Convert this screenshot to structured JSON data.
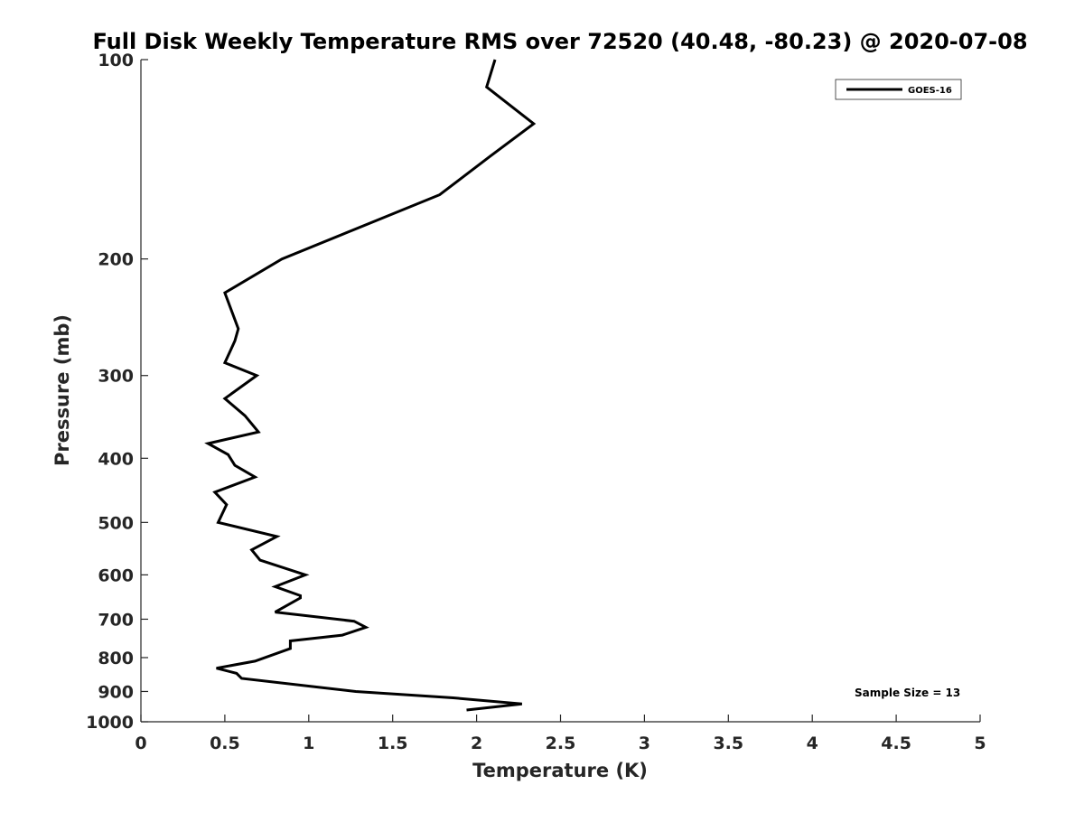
{
  "chart_data": {
    "type": "line",
    "title": "Full Disk Weekly Temperature RMS over 72520 (40.48, -80.23) @ 2020-07-08",
    "xlabel": "Temperature (K)",
    "ylabel": "Pressure (mb)",
    "xlim": [
      0,
      5
    ],
    "ylim": [
      1000,
      100
    ],
    "yscale": "log",
    "y_reversed": true,
    "xticks": [
      0,
      0.5,
      1,
      1.5,
      2,
      2.5,
      3,
      3.5,
      4,
      4.5,
      5
    ],
    "xtick_labels": [
      "0",
      "0.5",
      "1",
      "1.5",
      "2",
      "2.5",
      "3",
      "3.5",
      "4",
      "4.5",
      "5"
    ],
    "yticks": [
      100,
      200,
      300,
      400,
      500,
      600,
      700,
      800,
      900,
      1000
    ],
    "ytick_labels": [
      "100",
      "200",
      "300",
      "400",
      "500",
      "600",
      "700",
      "800",
      "900",
      "1000"
    ],
    "grid": false,
    "legend_position": "top-right",
    "series": [
      {
        "name": "GOES-16",
        "color": "#000000",
        "x": [
          2.11,
          2.06,
          2.34,
          2.08,
          1.78,
          0.84,
          0.5,
          0.58,
          0.56,
          0.5,
          0.69,
          0.5,
          0.62,
          0.7,
          0.4,
          0.52,
          0.56,
          0.68,
          0.44,
          0.51,
          0.46,
          0.81,
          0.66,
          0.71,
          0.98,
          0.8,
          0.95,
          0.95,
          0.8,
          1.27,
          1.34,
          1.2,
          0.89,
          0.89,
          0.68,
          0.45,
          0.57,
          0.6,
          1.28,
          1.86,
          2.27,
          1.94
        ],
        "y": [
          100,
          110,
          125,
          140,
          160,
          200,
          225,
          255,
          266,
          287,
          300,
          325,
          345,
          365,
          380,
          395,
          410,
          427,
          450,
          470,
          500,
          525,
          550,
          570,
          600,
          625,
          645,
          650,
          683,
          705,
          720,
          740,
          755,
          775,
          810,
          830,
          845,
          860,
          900,
          920,
          940,
          960
        ]
      }
    ],
    "annotation": "Sample Size = 13"
  }
}
